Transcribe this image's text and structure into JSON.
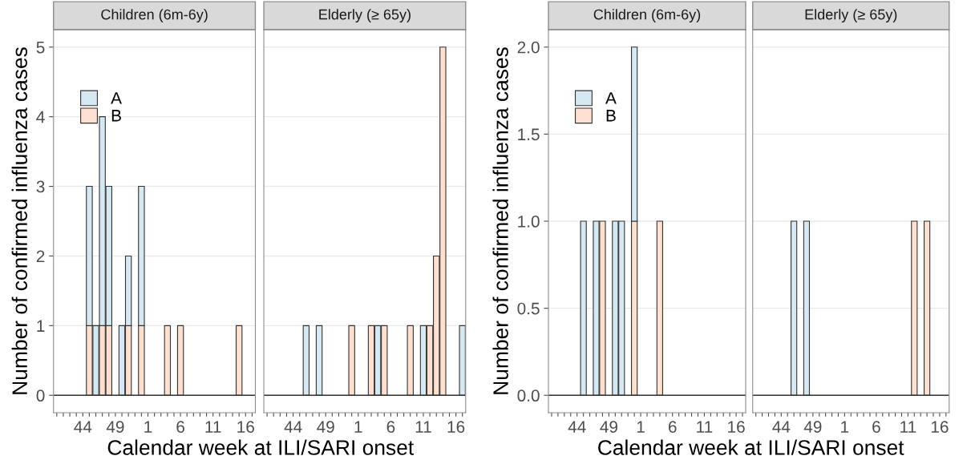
{
  "chart_data": [
    {
      "type": "bar",
      "stacked": true,
      "title": "Children (6m-6y)",
      "xlabel": "Calendar week at ILI/SARI onset",
      "ylabel": "Number of confirmed influenza cases",
      "categories": [
        null,
        null,
        null,
        null,
        "44",
        null,
        null,
        null,
        null,
        "49",
        null,
        null,
        null,
        null,
        "1",
        null,
        null,
        null,
        null,
        "6",
        null,
        null,
        null,
        null,
        "11",
        null,
        null,
        null,
        null,
        "16",
        null
      ],
      "series": [
        {
          "name": "B",
          "color": "#fde0cf",
          "values": [
            null,
            null,
            null,
            null,
            null,
            1,
            null,
            1,
            1,
            null,
            null,
            1,
            null,
            1,
            null,
            null,
            null,
            1,
            null,
            1,
            null,
            null,
            null,
            null,
            null,
            null,
            null,
            null,
            1,
            null,
            null
          ]
        },
        {
          "name": "A",
          "color": "#d6e8f2",
          "values": [
            null,
            null,
            null,
            null,
            null,
            2,
            1,
            3,
            2,
            null,
            1,
            1,
            null,
            2,
            null,
            null,
            null,
            null,
            null,
            null,
            null,
            null,
            null,
            null,
            null,
            null,
            null,
            null,
            null,
            null,
            null
          ]
        }
      ],
      "ref_lines": [
        {
          "axis": "y",
          "value": 0,
          "color": "#333333"
        }
      ],
      "ylim": [
        -0.25,
        5.25
      ],
      "yticks": [
        0,
        1,
        2,
        3,
        4,
        5
      ],
      "grid": "y",
      "legend": "top left"
    },
    {
      "type": "bar",
      "stacked": true,
      "title": "Elderly (≥ 65y)",
      "categories": [
        null,
        null,
        null,
        null,
        "44",
        null,
        null,
        null,
        null,
        "49",
        null,
        null,
        null,
        null,
        "1",
        null,
        null,
        null,
        null,
        "6",
        null,
        null,
        null,
        null,
        "11",
        null,
        null,
        null,
        null,
        "16",
        null
      ],
      "series": [
        {
          "color": "#fde0cf",
          "values": [
            null,
            null,
            null,
            null,
            null,
            null,
            null,
            null,
            null,
            null,
            null,
            null,
            null,
            1,
            null,
            null,
            1,
            null,
            1,
            null,
            null,
            null,
            1,
            null,
            null,
            1,
            2,
            5,
            null,
            null,
            null
          ]
        },
        {
          "color": "#d6e8f2",
          "values": [
            null,
            null,
            null,
            null,
            null,
            null,
            1,
            null,
            1,
            null,
            null,
            null,
            null,
            null,
            null,
            null,
            null,
            1,
            null,
            null,
            null,
            null,
            null,
            null,
            1,
            null,
            null,
            null,
            null,
            null,
            1
          ]
        }
      ],
      "ref_lines": [
        {
          "axis": "y",
          "value": 0,
          "color": "#333333"
        }
      ],
      "ylim": [
        -0.25,
        5.25
      ],
      "yticks": [
        0,
        1,
        2,
        3,
        4,
        5
      ],
      "grid": "y",
      "tick_labels": "x"
    },
    {
      "type": "bar",
      "stacked": true,
      "title": "Children (6m-6y)",
      "xlabel": "Calendar week at ILI/SARI onset",
      "ylabel": "Number of confirmed influenza cases",
      "categories": [
        null,
        null,
        null,
        null,
        "44",
        null,
        null,
        null,
        null,
        "49",
        null,
        null,
        null,
        null,
        "1",
        null,
        null,
        null,
        null,
        "6",
        null,
        null,
        null,
        null,
        "11",
        null,
        null,
        null,
        null,
        "16",
        null
      ],
      "series": [
        {
          "name": "B",
          "color": "#fde0cf",
          "values": [
            null,
            null,
            null,
            null,
            null,
            null,
            null,
            null,
            1,
            null,
            null,
            null,
            null,
            1,
            null,
            null,
            null,
            1,
            null,
            null,
            null,
            null,
            null,
            null,
            null,
            null,
            null,
            null,
            null,
            null,
            null
          ]
        },
        {
          "name": "A",
          "color": "#d6e8f2",
          "values": [
            null,
            null,
            null,
            null,
            null,
            1,
            null,
            1,
            null,
            null,
            1,
            1,
            null,
            1,
            null,
            null,
            null,
            null,
            null,
            null,
            null,
            null,
            null,
            null,
            null,
            null,
            null,
            null,
            null,
            null,
            null
          ]
        }
      ],
      "ref_lines": [
        {
          "axis": "y",
          "value": 0,
          "color": "#333333"
        }
      ],
      "ylim": [
        -0.1,
        2.1
      ],
      "yticks": [
        {
          "value": 0,
          "label": "0.0"
        },
        {
          "value": 0.5,
          "label": "0.5"
        },
        {
          "value": 1,
          "label": "1.0"
        },
        {
          "value": 1.5,
          "label": "1.5"
        },
        {
          "value": 2,
          "label": "2.0"
        }
      ],
      "grid": "y",
      "legend": "top left"
    },
    {
      "type": "bar",
      "stacked": true,
      "title": "Elderly (≥ 65y)",
      "categories": [
        null,
        null,
        null,
        null,
        "44",
        null,
        null,
        null,
        null,
        "49",
        null,
        null,
        null,
        null,
        "1",
        null,
        null,
        null,
        null,
        "6",
        null,
        null,
        null,
        null,
        "11",
        null,
        null,
        null,
        null,
        "16",
        null
      ],
      "series": [
        {
          "color": "#fde0cf",
          "values": [
            null,
            null,
            null,
            null,
            null,
            null,
            null,
            null,
            null,
            null,
            null,
            null,
            null,
            null,
            null,
            null,
            null,
            null,
            null,
            null,
            null,
            null,
            null,
            null,
            null,
            1,
            null,
            1,
            null,
            null,
            null
          ]
        },
        {
          "color": "#d6e8f2",
          "values": [
            null,
            null,
            null,
            null,
            null,
            null,
            1,
            null,
            1,
            null,
            null,
            null,
            null,
            null,
            null,
            null,
            null,
            null,
            null,
            null,
            null,
            null,
            null,
            null,
            null,
            null,
            null,
            null,
            null,
            null,
            null
          ]
        }
      ],
      "ref_lines": [
        {
          "axis": "y",
          "value": 0,
          "color": "#333333"
        }
      ],
      "ylim": [
        -0.1,
        2.1
      ],
      "yticks": [
        0,
        0.5,
        1,
        1.5,
        2
      ],
      "grid": "y",
      "tick_labels": "x"
    }
  ]
}
